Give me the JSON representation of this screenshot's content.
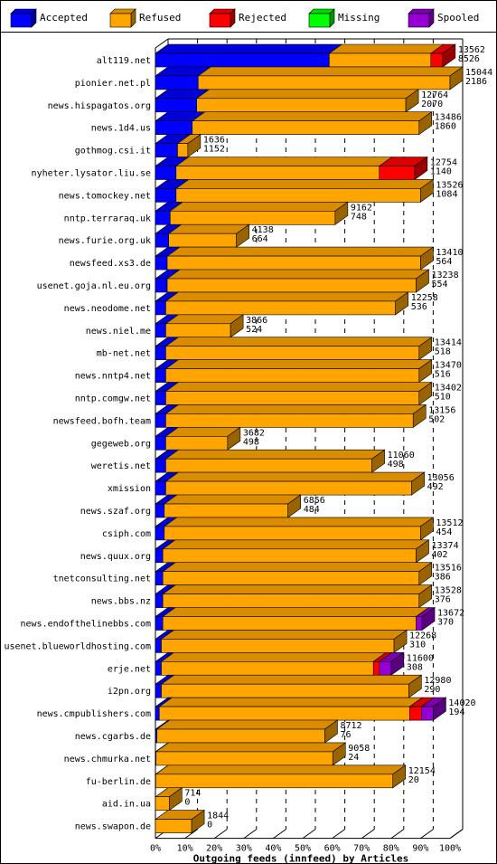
{
  "chart_data": {
    "type": "bar",
    "orientation": "horizontal",
    "stacked": true,
    "xlabel": "Outgoing feeds (innfeed) by Articles",
    "x_ticks": [
      "0%",
      "10%",
      "20%",
      "30%",
      "40%",
      "50%",
      "60%",
      "70%",
      "80%",
      "90%",
      "100%"
    ],
    "xlim": [
      0,
      100
    ],
    "x_unit": "percent of max total articles",
    "grid": "vertical dashed",
    "legend_position": "top",
    "series": [
      {
        "name": "Accepted",
        "color": "#0000ff"
      },
      {
        "name": "Refused",
        "color": "#ffa500"
      },
      {
        "name": "Rejected",
        "color": "#ff0000"
      },
      {
        "name": "Missing",
        "color": "#00ff00"
      },
      {
        "name": "Spooled",
        "color": "#9400d3"
      }
    ],
    "rows": [
      {
        "host": "alt119.net",
        "offered": "13562",
        "accepted_count": "8526",
        "pct": [
          59,
          34.5,
          4,
          0,
          0
        ]
      },
      {
        "host": "pionier.net.pl",
        "offered": "15044",
        "accepted_count": "2186",
        "pct": [
          14.5,
          85.5,
          0,
          0,
          0
        ]
      },
      {
        "host": "news.hispagatos.org",
        "offered": "12764",
        "accepted_count": "2070",
        "pct": [
          14,
          71,
          0,
          0,
          0
        ]
      },
      {
        "host": "news.1d4.us",
        "offered": "13486",
        "accepted_count": "1860",
        "pct": [
          12.5,
          77,
          0,
          0,
          0
        ]
      },
      {
        "host": "gothmog.csi.it",
        "offered": "1636",
        "accepted_count": "1152",
        "pct": [
          7.5,
          3.5,
          0,
          0,
          0
        ]
      },
      {
        "host": "nyheter.lysator.liu.se",
        "offered": "12754",
        "accepted_count": "1140",
        "pct": [
          7,
          69,
          12,
          0,
          0
        ]
      },
      {
        "host": "news.tomockey.net",
        "offered": "13526",
        "accepted_count": "1084",
        "pct": [
          7,
          83,
          0,
          0,
          0
        ]
      },
      {
        "host": "nntp.terraraq.uk",
        "offered": "9162",
        "accepted_count": "748",
        "pct": [
          5,
          56,
          0,
          0,
          0
        ]
      },
      {
        "host": "news.furie.org.uk",
        "offered": "4138",
        "accepted_count": "664",
        "pct": [
          4.5,
          23,
          0,
          0,
          0
        ]
      },
      {
        "host": "newsfeed.xs3.de",
        "offered": "13410",
        "accepted_count": "564",
        "pct": [
          4,
          86,
          0,
          0,
          0
        ]
      },
      {
        "host": "usenet.goja.nl.eu.org",
        "offered": "13238",
        "accepted_count": "554",
        "pct": [
          4,
          84.5,
          0,
          0,
          0
        ]
      },
      {
        "host": "news.neodome.net",
        "offered": "12258",
        "accepted_count": "536",
        "pct": [
          3.5,
          78,
          0,
          0,
          0
        ]
      },
      {
        "host": "news.niel.me",
        "offered": "3866",
        "accepted_count": "524",
        "pct": [
          3.5,
          22,
          0,
          0,
          0
        ]
      },
      {
        "host": "mb-net.net",
        "offered": "13414",
        "accepted_count": "518",
        "pct": [
          3.5,
          86,
          0,
          0,
          0
        ]
      },
      {
        "host": "news.nntp4.net",
        "offered": "13470",
        "accepted_count": "516",
        "pct": [
          3.5,
          86,
          0,
          0,
          0
        ]
      },
      {
        "host": "nntp.comgw.net",
        "offered": "13402",
        "accepted_count": "510",
        "pct": [
          3.5,
          86,
          0,
          0,
          0
        ]
      },
      {
        "host": "newsfeed.bofh.team",
        "offered": "13156",
        "accepted_count": "502",
        "pct": [
          3.5,
          84,
          0,
          0,
          0
        ]
      },
      {
        "host": "gegeweb.org",
        "offered": "3682",
        "accepted_count": "498",
        "pct": [
          3.5,
          21,
          0,
          0,
          0
        ]
      },
      {
        "host": "weretis.net",
        "offered": "11060",
        "accepted_count": "498",
        "pct": [
          3.5,
          70,
          0,
          0,
          0
        ]
      },
      {
        "host": "xmission",
        "offered": "13056",
        "accepted_count": "492",
        "pct": [
          3.5,
          83.5,
          0,
          0,
          0
        ]
      },
      {
        "host": "news.szaf.org",
        "offered": "6856",
        "accepted_count": "484",
        "pct": [
          3,
          42,
          0,
          0,
          0
        ]
      },
      {
        "host": "csiph.com",
        "offered": "13512",
        "accepted_count": "454",
        "pct": [
          3,
          87,
          0,
          0,
          0
        ]
      },
      {
        "host": "news.quux.org",
        "offered": "13374",
        "accepted_count": "402",
        "pct": [
          2.5,
          86,
          0,
          0,
          0
        ]
      },
      {
        "host": "tnetconsulting.net",
        "offered": "13516",
        "accepted_count": "386",
        "pct": [
          2.5,
          87,
          0,
          0,
          0
        ]
      },
      {
        "host": "news.bbs.nz",
        "offered": "13528",
        "accepted_count": "376",
        "pct": [
          2.5,
          87,
          0,
          0,
          0
        ]
      },
      {
        "host": "news.endofthelinebbs.com",
        "offered": "13672",
        "accepted_count": "370",
        "pct": [
          2.5,
          86,
          0,
          0,
          2
        ]
      },
      {
        "host": "usenet.blueworldhosting.com",
        "offered": "12268",
        "accepted_count": "310",
        "pct": [
          2,
          79,
          0,
          0,
          0
        ]
      },
      {
        "host": "erje.net",
        "offered": "11600",
        "accepted_count": "308",
        "pct": [
          2,
          72,
          2,
          0,
          4
        ]
      },
      {
        "host": "i2pn.org",
        "offered": "12980",
        "accepted_count": "290",
        "pct": [
          2,
          84,
          0,
          0,
          0
        ]
      },
      {
        "host": "news.cmpublishers.com",
        "offered": "14020",
        "accepted_count": "194",
        "pct": [
          1.3,
          85,
          4,
          0,
          4
        ]
      },
      {
        "host": "news.cgarbs.de",
        "offered": "8712",
        "accepted_count": "76",
        "pct": [
          0.5,
          57,
          0,
          0,
          0
        ]
      },
      {
        "host": "news.chmurka.net",
        "offered": "9058",
        "accepted_count": "24",
        "pct": [
          0.2,
          60,
          0,
          0,
          0
        ]
      },
      {
        "host": "fu-berlin.de",
        "offered": "12154",
        "accepted_count": "20",
        "pct": [
          0.1,
          80.5,
          0,
          0,
          0
        ]
      },
      {
        "host": "aid.in.ua",
        "offered": "714",
        "accepted_count": "0",
        "pct": [
          0,
          4.7,
          0,
          0,
          0
        ]
      },
      {
        "host": "news.swapon.de",
        "offered": "1844",
        "accepted_count": "0",
        "pct": [
          0,
          12.3,
          0,
          0,
          0
        ]
      }
    ]
  }
}
